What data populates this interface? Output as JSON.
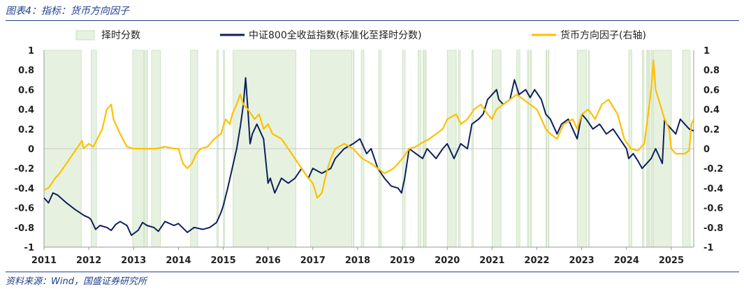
{
  "header": {
    "title": "图表4：指标：货币方向因子"
  },
  "footer": {
    "source": "资料来源：Wind，国盛证券研究所"
  },
  "colors": {
    "index": "#0f1f5c",
    "factor": "#ffc000",
    "timing": "#e6f2df",
    "timing_edge": "#c9dfbf",
    "rule": "#1f3f8f"
  },
  "chart_data": {
    "type": "line",
    "x_ticks": [
      "2011",
      "2012",
      "2013",
      "2014",
      "2015",
      "2016",
      "2017",
      "2018",
      "2019",
      "2020",
      "2021",
      "2022",
      "2023",
      "2024",
      "2025"
    ],
    "xlim": [
      2011.0,
      2025.5
    ],
    "ylim_left": [
      -1,
      1
    ],
    "ylim_right": [
      -1,
      1
    ],
    "y_ticks_left": [
      "-1",
      "-0.8",
      "-0.6",
      "-0.4",
      "-0.2",
      "0",
      "0.2",
      "0.4",
      "0.6",
      "0.8",
      "1"
    ],
    "y_ticks_right": [
      "-1",
      "-0.8",
      "-0.6",
      "-0.4",
      "-0.2",
      "0",
      "0.2",
      "0.4",
      "0.6",
      "0.8",
      "1"
    ],
    "legend": [
      "择时分数",
      "中证800全收益指数(标准化至择时分数)",
      "货币方向因子(右轴)"
    ],
    "timing_periods": [
      [
        2011.0,
        2011.83
      ],
      [
        2012.05,
        2012.17
      ],
      [
        2012.98,
        2013.22
      ],
      [
        2013.24,
        2013.26
      ],
      [
        2013.29,
        2013.31
      ],
      [
        2013.4,
        2013.6
      ],
      [
        2014.27,
        2014.43
      ],
      [
        2014.86,
        2014.89
      ],
      [
        2015.0,
        2015.03
      ],
      [
        2015.22,
        2016.62
      ],
      [
        2016.95,
        2017.87
      ],
      [
        2017.9,
        2017.92
      ],
      [
        2018.08,
        2018.14
      ],
      [
        2018.47,
        2018.52
      ],
      [
        2019.0,
        2019.06
      ],
      [
        2019.35,
        2019.41
      ],
      [
        2019.46,
        2019.48
      ],
      [
        2019.5,
        2019.53
      ],
      [
        2020.0,
        2020.2
      ],
      [
        2020.25,
        2020.29
      ],
      [
        2020.55,
        2020.58
      ],
      [
        2021.0,
        2021.2
      ],
      [
        2021.55,
        2021.62
      ],
      [
        2021.79,
        2021.82
      ],
      [
        2021.85,
        2021.88
      ],
      [
        2022.2,
        2022.22
      ],
      [
        2022.25,
        2022.27
      ],
      [
        2022.9,
        2023.11
      ],
      [
        2023.15,
        2023.17
      ],
      [
        2024.05,
        2024.12
      ],
      [
        2024.35,
        2024.39
      ],
      [
        2024.45,
        2024.48
      ],
      [
        2024.5,
        2024.52
      ],
      [
        2024.55,
        2024.58
      ],
      [
        2024.6,
        2025.0
      ],
      [
        2025.25,
        2025.42
      ]
    ],
    "series": [
      {
        "name": "中证800全收益指数(标准化至择时分数)",
        "axis": "left",
        "x": [
          2011.0,
          2011.1,
          2011.2,
          2011.3,
          2011.5,
          2011.7,
          2011.9,
          2012.0,
          2012.05,
          2012.15,
          2012.25,
          2012.4,
          2012.5,
          2012.6,
          2012.7,
          2012.85,
          2012.95,
          2013.1,
          2013.2,
          2013.3,
          2013.45,
          2013.55,
          2013.7,
          2013.9,
          2014.0,
          2014.2,
          2014.35,
          2014.55,
          2014.7,
          2014.85,
          2014.95,
          2015.0,
          2015.1,
          2015.2,
          2015.3,
          2015.38,
          2015.45,
          2015.5,
          2015.55,
          2015.6,
          2015.65,
          2015.75,
          2015.9,
          2016.0,
          2016.05,
          2016.15,
          2016.3,
          2016.45,
          2016.6,
          2016.75,
          2016.9,
          2017.0,
          2017.2,
          2017.4,
          2017.5,
          2017.7,
          2017.9,
          2018.05,
          2018.1,
          2018.2,
          2018.3,
          2018.45,
          2018.6,
          2018.75,
          2018.9,
          2018.98,
          2019.05,
          2019.15,
          2019.3,
          2019.45,
          2019.55,
          2019.75,
          2019.9,
          2020.0,
          2020.15,
          2020.3,
          2020.45,
          2020.55,
          2020.7,
          2020.8,
          2020.9,
          2021.0,
          2021.1,
          2021.15,
          2021.25,
          2021.4,
          2021.5,
          2021.6,
          2021.75,
          2021.85,
          2021.95,
          2022.1,
          2022.2,
          2022.3,
          2022.45,
          2022.55,
          2022.7,
          2022.8,
          2022.9,
          2023.0,
          2023.1,
          2023.25,
          2023.4,
          2023.55,
          2023.7,
          2023.85,
          2024.0,
          2024.05,
          2024.15,
          2024.25,
          2024.35,
          2024.45,
          2024.55,
          2024.65,
          2024.75,
          2024.8,
          2024.85,
          2024.9,
          2025.0,
          2025.1,
          2025.2,
          2025.3,
          2025.4,
          2025.5
        ],
        "values": [
          -0.5,
          -0.55,
          -0.45,
          -0.47,
          -0.55,
          -0.62,
          -0.68,
          -0.7,
          -0.72,
          -0.82,
          -0.78,
          -0.8,
          -0.83,
          -0.77,
          -0.74,
          -0.78,
          -0.88,
          -0.83,
          -0.75,
          -0.78,
          -0.8,
          -0.84,
          -0.74,
          -0.78,
          -0.76,
          -0.85,
          -0.8,
          -0.82,
          -0.8,
          -0.75,
          -0.65,
          -0.58,
          -0.4,
          -0.2,
          0.0,
          0.22,
          0.45,
          0.72,
          0.4,
          0.05,
          0.15,
          0.25,
          0.1,
          -0.35,
          -0.3,
          -0.45,
          -0.3,
          -0.35,
          -0.3,
          -0.2,
          -0.3,
          -0.2,
          -0.25,
          -0.2,
          -0.1,
          0.0,
          0.05,
          0.1,
          0.05,
          -0.05,
          0.0,
          -0.2,
          -0.3,
          -0.38,
          -0.4,
          -0.45,
          -0.3,
          0.0,
          -0.05,
          -0.1,
          0.0,
          -0.1,
          0.0,
          0.05,
          -0.1,
          0.05,
          0.0,
          0.25,
          0.3,
          0.35,
          0.5,
          0.55,
          0.6,
          0.5,
          0.45,
          0.5,
          0.7,
          0.55,
          0.6,
          0.52,
          0.6,
          0.5,
          0.35,
          0.3,
          0.15,
          0.25,
          0.3,
          0.2,
          0.1,
          0.35,
          0.3,
          0.2,
          0.25,
          0.15,
          0.2,
          0.1,
          0.0,
          -0.1,
          -0.05,
          -0.12,
          -0.2,
          -0.15,
          -0.1,
          0.0,
          -0.1,
          -0.15,
          0.3,
          0.25,
          0.2,
          0.15,
          0.3,
          0.25,
          0.2,
          0.18
        ]
      },
      {
        "name": "货币方向因子(右轴)",
        "axis": "right",
        "x": [
          2011.0,
          2011.1,
          2011.25,
          2011.35,
          2011.5,
          2011.65,
          2011.85,
          2011.88,
          2012.0,
          2012.1,
          2012.3,
          2012.4,
          2012.5,
          2012.55,
          2012.7,
          2012.85,
          2013.0,
          2013.5,
          2013.7,
          2013.9,
          2014.0,
          2014.1,
          2014.2,
          2014.3,
          2014.4,
          2014.5,
          2014.65,
          2014.8,
          2014.95,
          2015.05,
          2015.15,
          2015.2,
          2015.3,
          2015.38,
          2015.45,
          2015.55,
          2015.7,
          2015.8,
          2015.9,
          2016.0,
          2016.1,
          2016.3,
          2016.45,
          2016.6,
          2016.75,
          2016.9,
          2017.0,
          2017.1,
          2017.2,
          2017.3,
          2017.4,
          2017.5,
          2017.7,
          2017.9,
          2018.0,
          2018.1,
          2018.3,
          2018.45,
          2018.6,
          2018.8,
          2019.0,
          2019.15,
          2019.3,
          2019.4,
          2019.6,
          2019.75,
          2019.9,
          2020.0,
          2020.2,
          2020.3,
          2020.45,
          2020.6,
          2020.75,
          2020.9,
          2021.0,
          2021.1,
          2021.25,
          2021.4,
          2021.55,
          2021.7,
          2021.85,
          2022.0,
          2022.1,
          2022.2,
          2022.3,
          2022.45,
          2022.6,
          2022.8,
          2022.9,
          2023.0,
          2023.15,
          2023.3,
          2023.45,
          2023.6,
          2023.8,
          2023.95,
          2024.1,
          2024.25,
          2024.4,
          2024.55,
          2024.6,
          2024.65,
          2024.75,
          2024.85,
          2024.95,
          2025.0,
          2025.1,
          2025.3,
          2025.4,
          2025.45,
          2025.5
        ],
        "values": [
          -0.42,
          -0.4,
          -0.3,
          -0.25,
          -0.15,
          -0.05,
          0.08,
          0.0,
          0.05,
          0.02,
          0.2,
          0.4,
          0.45,
          0.3,
          0.15,
          0.02,
          0.0,
          0.0,
          0.02,
          0.0,
          0.0,
          -0.15,
          -0.2,
          -0.15,
          -0.05,
          0.0,
          0.02,
          0.1,
          0.15,
          0.3,
          0.25,
          0.35,
          0.45,
          0.55,
          0.45,
          0.4,
          0.3,
          0.35,
          0.2,
          0.25,
          0.15,
          0.1,
          0.0,
          -0.1,
          -0.2,
          -0.3,
          -0.35,
          -0.5,
          -0.45,
          -0.25,
          -0.1,
          0.0,
          0.05,
          0.0,
          -0.05,
          -0.1,
          -0.15,
          -0.2,
          -0.25,
          -0.2,
          -0.1,
          0.0,
          0.02,
          0.05,
          0.1,
          0.15,
          0.2,
          0.3,
          0.35,
          0.25,
          0.3,
          0.4,
          0.45,
          0.35,
          0.3,
          0.4,
          0.45,
          0.5,
          0.55,
          0.5,
          0.45,
          0.4,
          0.3,
          0.2,
          0.15,
          0.1,
          0.25,
          0.3,
          0.2,
          0.35,
          0.4,
          0.3,
          0.45,
          0.5,
          0.35,
          0.1,
          0.0,
          -0.02,
          0.05,
          0.6,
          0.9,
          0.6,
          0.45,
          0.3,
          0.2,
          0.0,
          -0.05,
          -0.05,
          -0.02,
          0.25,
          0.3
        ]
      }
    ]
  }
}
